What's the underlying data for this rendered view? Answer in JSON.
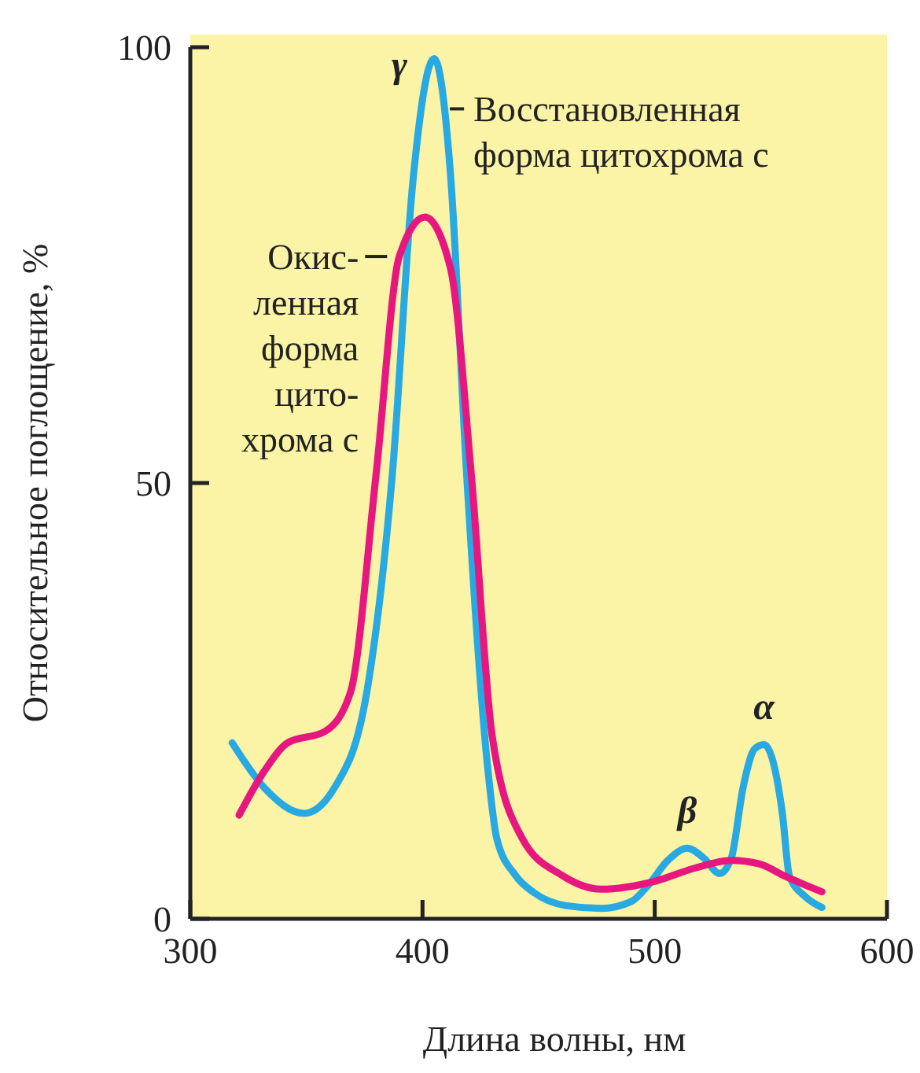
{
  "chart_data": {
    "type": "line",
    "xlabel": "Длина волны, нм",
    "ylabel": "Относительное поглощение, %",
    "xlim": [
      300,
      600
    ],
    "xticks": [
      300,
      400,
      500,
      600
    ],
    "ylim": [
      0,
      100
    ],
    "yticks": [
      0,
      50,
      100
    ],
    "grid": false,
    "line_style": "solid",
    "marker": "none",
    "series": [
      {
        "name": "Восстановленная\nформа цитохрома c",
        "color": "#29a9e1",
        "x": [
          318,
          332,
          349,
          362,
          376,
          387,
          396,
          405,
          412,
          419,
          428,
          432,
          440,
          448,
          462,
          477,
          490,
          497,
          506,
          514,
          521,
          528,
          533,
          538,
          543,
          547,
          551,
          555,
          558,
          565,
          572
        ],
        "values": [
          20.2,
          15,
          12.1,
          15,
          26,
          51,
          85,
          98.7,
          85.6,
          51,
          17.5,
          9.2,
          5,
          3,
          1.5,
          1.2,
          2,
          3.8,
          6.8,
          8.1,
          7,
          5.2,
          7,
          15,
          19.5,
          20,
          18,
          12,
          4.9,
          2.5,
          1.3
        ]
      },
      {
        "name": "Окис-\nленная\nформа\nцито-\nхрома c",
        "color": "#e6177f",
        "x": [
          321,
          332,
          342,
          358,
          369,
          380,
          390,
          401,
          412,
          421,
          430,
          443,
          460,
          477,
          500,
          517,
          533,
          545,
          556,
          572
        ],
        "values": [
          11.9,
          17,
          20.2,
          21.5,
          26,
          51,
          76,
          80.5,
          74.7,
          51,
          21,
          9.2,
          5,
          3.4,
          4.3,
          5.8,
          6.7,
          6.3,
          4.9,
          3.1
        ]
      }
    ],
    "annotations": [
      {
        "text": "γ",
        "x": 405,
        "y": 98.7
      },
      {
        "text": "β",
        "x": 514,
        "y": 8.1
      },
      {
        "text": "α",
        "x": 547,
        "y": 20
      }
    ]
  }
}
